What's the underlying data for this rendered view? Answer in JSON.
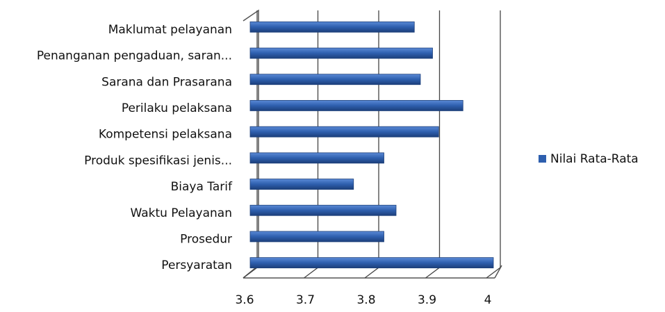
{
  "chart_data": {
    "type": "bar",
    "orientation": "horizontal",
    "categories": [
      "Maklumat pelayanan",
      "Penanganan pengaduan, saran...",
      "Sarana dan Prasarana",
      "Perilaku pelaksana",
      "Kompetensi pelaksana",
      "Produk spesifikasi jenis...",
      "Biaya Tarif",
      "Waktu Pelayanan",
      "Prosedur",
      "Persyaratan"
    ],
    "series": [
      {
        "name": "Nilai Rata-Rata",
        "color": "#2e5fae",
        "values": [
          3.87,
          3.9,
          3.88,
          3.95,
          3.91,
          3.82,
          3.77,
          3.84,
          3.82,
          4.0
        ]
      }
    ],
    "xlim": [
      3.6,
      4
    ],
    "xticks": [
      3.6,
      3.7,
      3.8,
      3.9,
      4
    ],
    "grid": true,
    "legend": "right"
  }
}
